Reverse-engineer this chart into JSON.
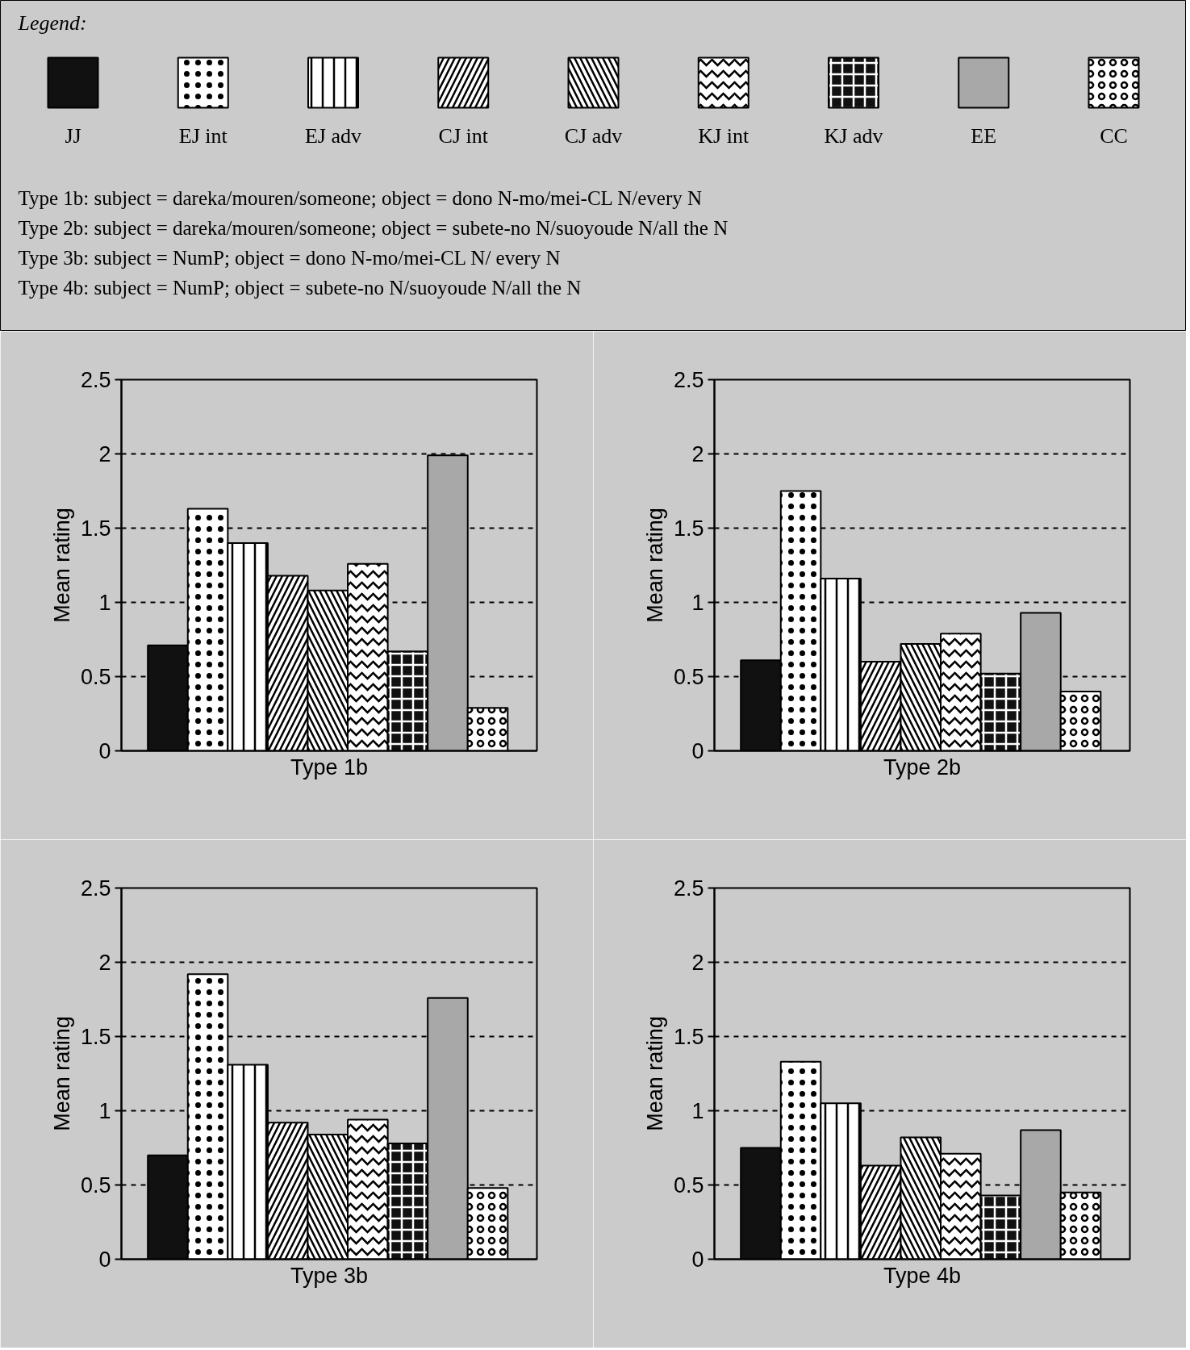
{
  "chart_data": [
    {
      "type": "bar",
      "xlabel": "Type 1b",
      "ylabel": "Mean rating",
      "legend": "top",
      "legend_title": "Legend:",
      "grid": "y",
      "categories": [
        null
      ],
      "ylim": [
        0,
        2.5
      ],
      "yticks": [
        0,
        0.5,
        1,
        1.5,
        2,
        2.5
      ],
      "annotations": [
        "Type 1b: subject = dareka/mouren/someone; object = dono N-mo/mei-CL N/every N",
        "Type 2b: subject = dareka/mouren/someone; object = subete-no N/suoyoude N/all the N",
        "Type 3b: subject = NumP; object = dono N-mo/mei-CL N/ every N",
        "Type 4b: subject = NumP; object = subete-no N/suoyoude N/all the N"
      ],
      "series": [
        {
          "name": "JJ",
          "color": "#111111",
          "values": [
            0.71
          ]
        },
        {
          "name": "EJ int",
          "color": "#ffffff",
          "values": [
            1.63
          ]
        },
        {
          "name": "EJ adv",
          "color": "#ffffff",
          "values": [
            1.4
          ]
        },
        {
          "name": "CJ int",
          "color": "#ffffff",
          "values": [
            1.18
          ]
        },
        {
          "name": "CJ adv",
          "color": "#ffffff",
          "values": [
            1.08
          ]
        },
        {
          "name": "KJ int",
          "color": "#ffffff",
          "values": [
            1.26
          ]
        },
        {
          "name": "KJ adv",
          "color": "#111111",
          "values": [
            0.67
          ]
        },
        {
          "name": "EE",
          "color": "#a8a8a8",
          "values": [
            1.99
          ]
        },
        {
          "name": "CC",
          "color": "#ffffff",
          "values": [
            0.29
          ]
        }
      ]
    },
    {
      "type": "bar",
      "xlabel": "Type 2b",
      "ylabel": "Mean rating",
      "grid": "y",
      "categories": [
        null
      ],
      "ylim": [
        0,
        2.5
      ],
      "yticks": [
        0,
        0.5,
        1,
        1.5,
        2,
        2.5
      ],
      "series": [
        {
          "color": "#111111",
          "values": [
            0.61
          ]
        },
        {
          "color": "#ffffff",
          "values": [
            1.75
          ]
        },
        {
          "color": "#ffffff",
          "values": [
            1.16
          ]
        },
        {
          "color": "#ffffff",
          "values": [
            0.6
          ]
        },
        {
          "color": "#ffffff",
          "values": [
            0.72
          ]
        },
        {
          "color": "#ffffff",
          "values": [
            0.79
          ]
        },
        {
          "color": "#111111",
          "values": [
            0.52
          ]
        },
        {
          "color": "#a8a8a8",
          "values": [
            0.93
          ]
        },
        {
          "color": "#ffffff",
          "values": [
            0.4
          ]
        }
      ]
    },
    {
      "type": "bar",
      "xlabel": "Type 3b",
      "ylabel": "Mean rating",
      "grid": "y",
      "categories": [
        null
      ],
      "ylim": [
        0,
        2.5
      ],
      "yticks": [
        0,
        0.5,
        1,
        1.5,
        2,
        2.5
      ],
      "series": [
        {
          "color": "#111111",
          "values": [
            0.7
          ]
        },
        {
          "color": "#ffffff",
          "values": [
            1.92
          ]
        },
        {
          "color": "#ffffff",
          "values": [
            1.31
          ]
        },
        {
          "color": "#ffffff",
          "values": [
            0.92
          ]
        },
        {
          "color": "#ffffff",
          "values": [
            0.84
          ]
        },
        {
          "color": "#ffffff",
          "values": [
            0.94
          ]
        },
        {
          "color": "#111111",
          "values": [
            0.78
          ]
        },
        {
          "color": "#a8a8a8",
          "values": [
            1.76
          ]
        },
        {
          "color": "#ffffff",
          "values": [
            0.48
          ]
        }
      ]
    },
    {
      "type": "bar",
      "xlabel": "Type 4b",
      "ylabel": "Mean rating",
      "grid": "y",
      "categories": [
        null
      ],
      "ylim": [
        0,
        2.5
      ],
      "yticks": [
        0,
        0.5,
        1,
        1.5,
        2,
        2.5
      ],
      "series": [
        {
          "color": "#111111",
          "values": [
            0.75
          ]
        },
        {
          "color": "#ffffff",
          "values": [
            1.33
          ]
        },
        {
          "color": "#ffffff",
          "values": [
            1.05
          ]
        },
        {
          "color": "#ffffff",
          "values": [
            0.63
          ]
        },
        {
          "color": "#ffffff",
          "values": [
            0.82
          ]
        },
        {
          "color": "#ffffff",
          "values": [
            0.71
          ]
        },
        {
          "color": "#111111",
          "values": [
            0.43
          ]
        },
        {
          "color": "#a8a8a8",
          "values": [
            0.87
          ]
        },
        {
          "color": "#ffffff",
          "values": [
            0.45
          ]
        }
      ]
    }
  ]
}
